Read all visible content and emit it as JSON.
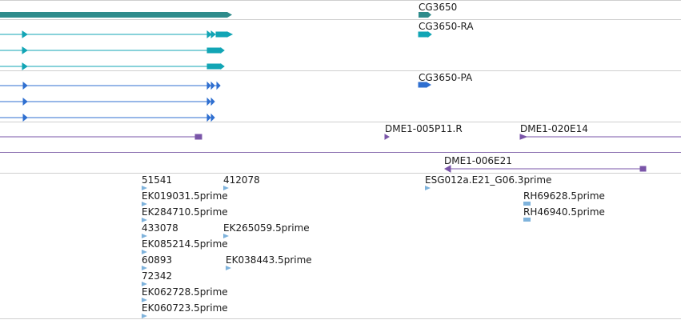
{
  "colors": {
    "gene": "#2e8b8b",
    "transcript_ra": "#12a5b5",
    "transcript_pa": "#2f6fd0",
    "clone": "#7a55a8",
    "est": "#7fb3dc",
    "separator": "#cfcfcf"
  },
  "gene_track": {
    "label": "CG3650"
  },
  "transcript_ra_track": {
    "label": "CG3650-RA"
  },
  "protein_pa_track": {
    "label": "CG3650-PA"
  },
  "clone_track": {
    "labels": [
      "DME1-005P11.R",
      "DME1-020E14",
      "DME1-006E21"
    ]
  },
  "est_track": {
    "labels": [
      "51541",
      "412078",
      "ESG012a.E21_G06.3prime",
      "EK019031.5prime",
      "RH69628.5prime",
      "EK284710.5prime",
      "RH46940.5prime",
      "433078",
      "EK265059.5prime",
      "EK085214.5prime",
      "60893",
      "EK038443.5prime",
      "72342",
      "EK062728.5prime",
      "EK060723.5prime"
    ]
  }
}
